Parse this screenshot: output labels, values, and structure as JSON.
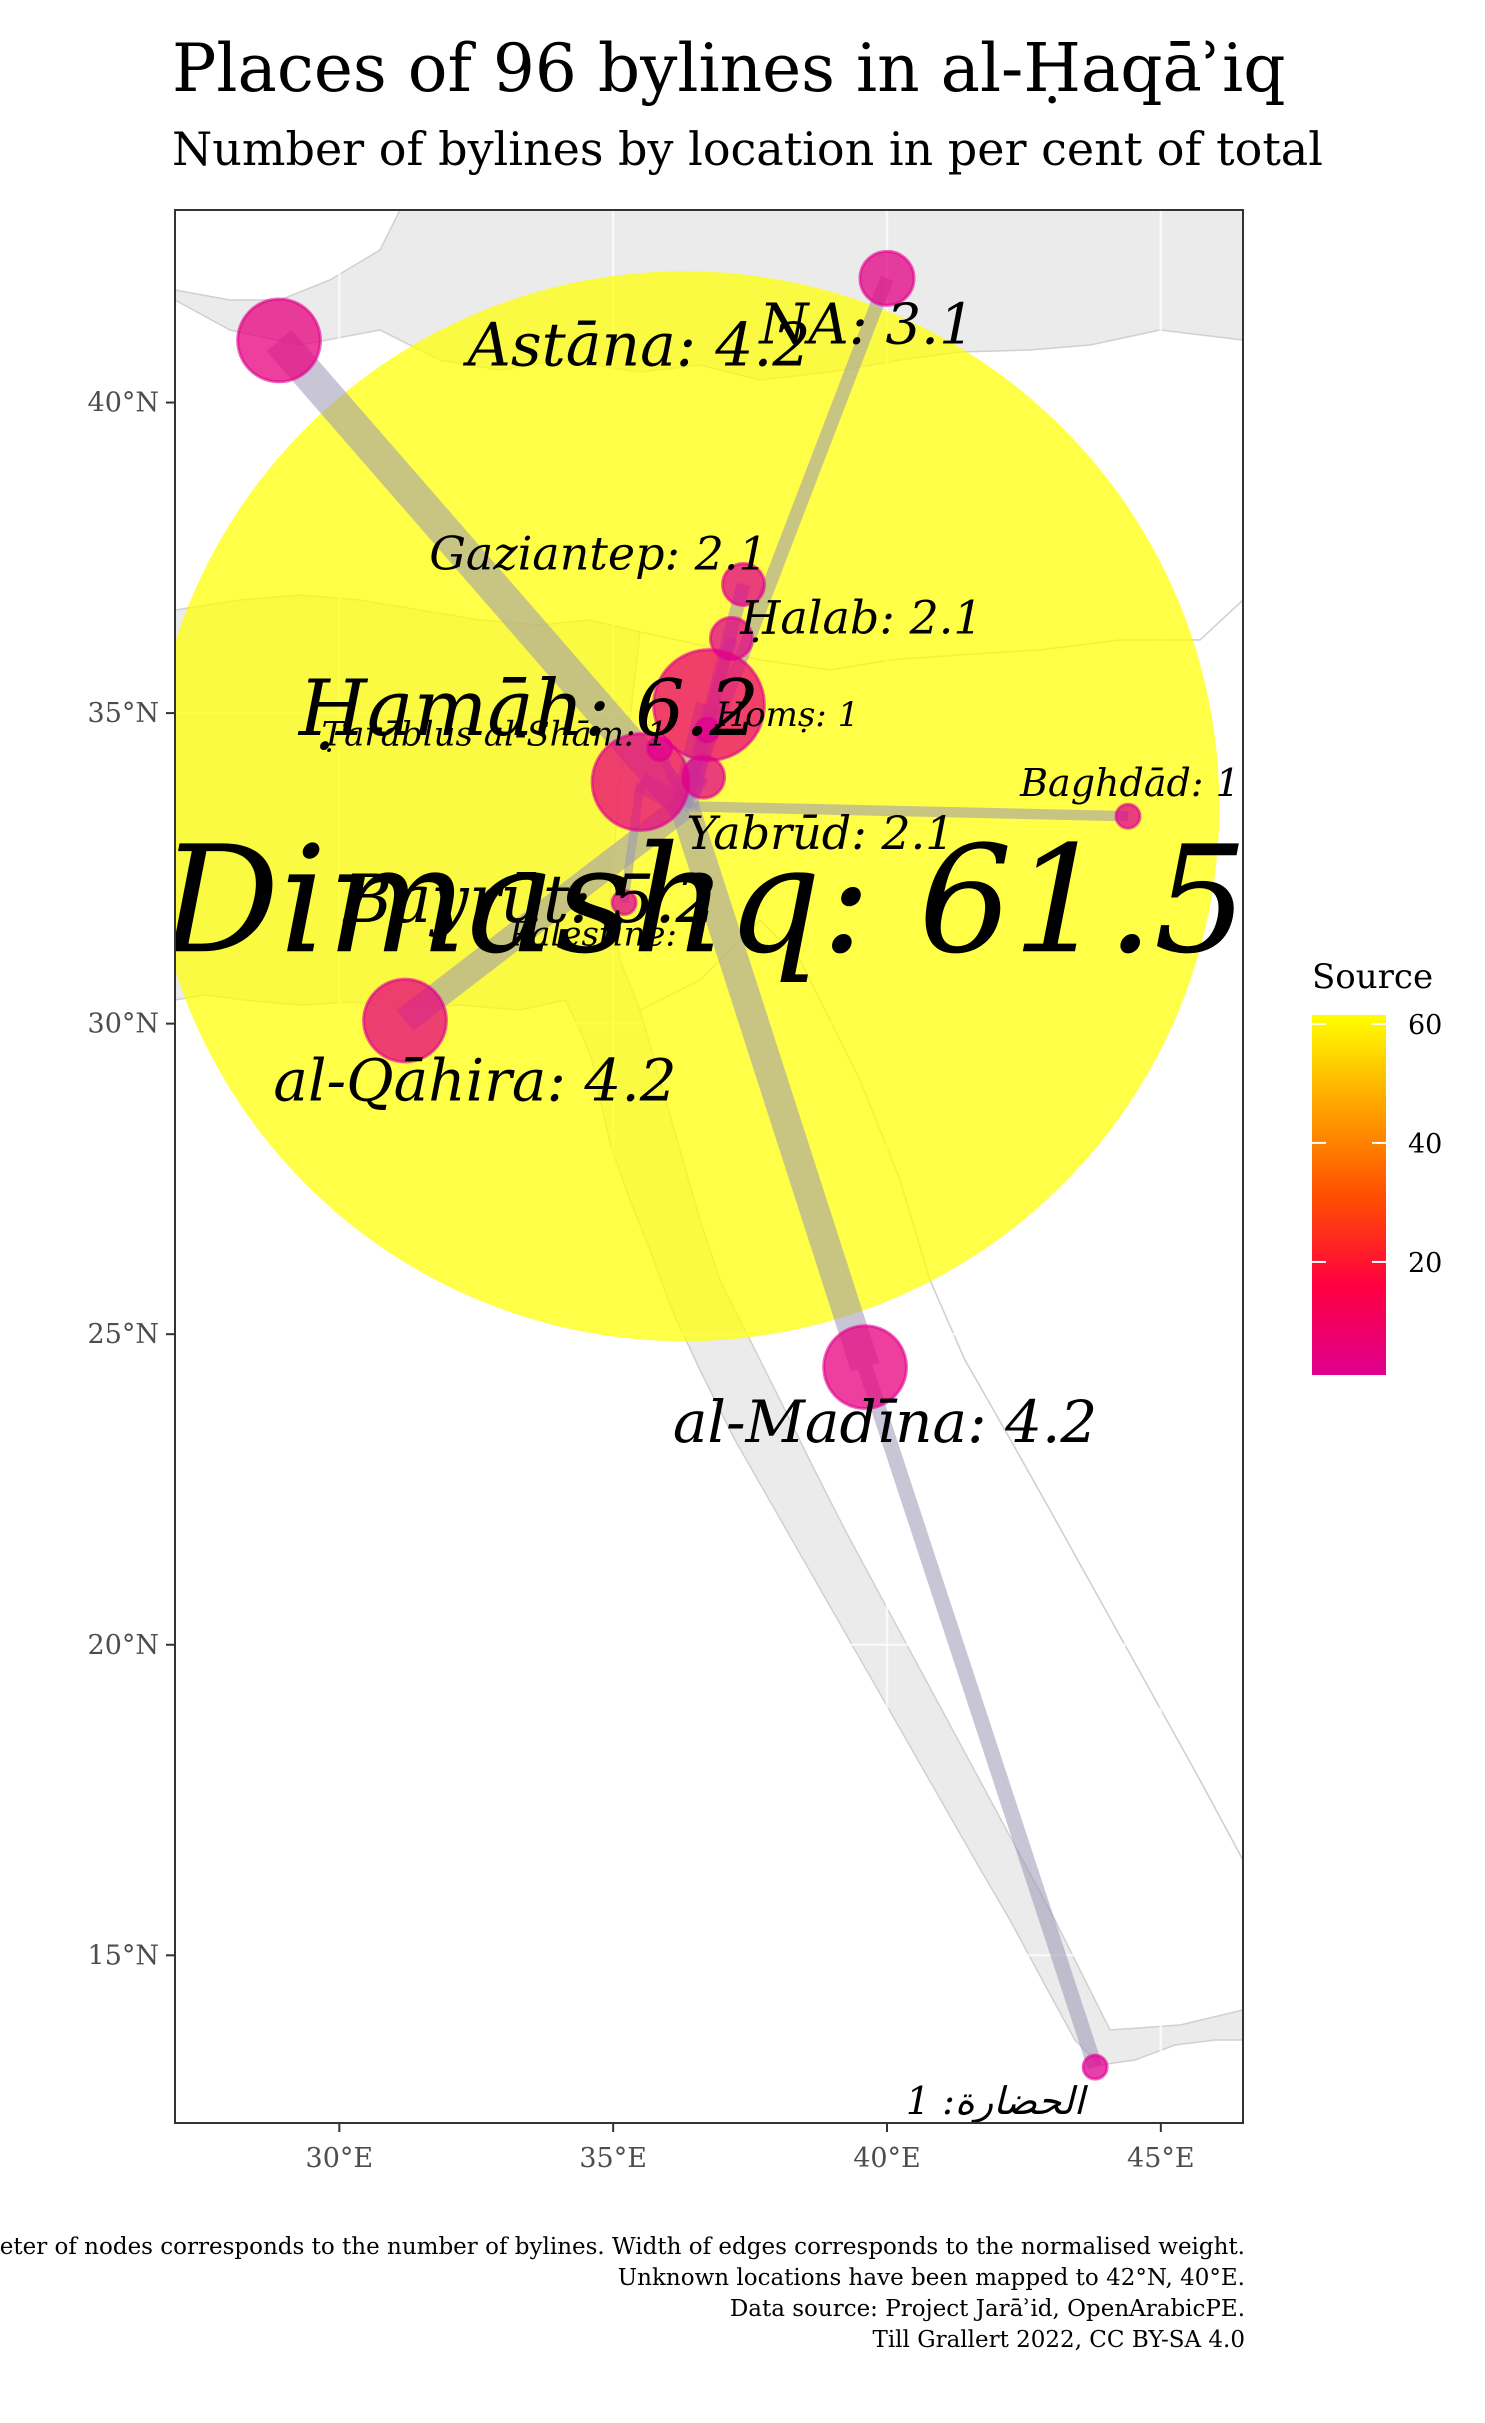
{
  "title": "Places of 96 bylines in al-Ḥaqāʾiq",
  "subtitle": "Number of bylines by location in per cent of total",
  "legend": {
    "title": "Source",
    "ticks": [
      "60",
      "40",
      "20"
    ],
    "tick_values": [
      60,
      40,
      20
    ],
    "range": [
      1,
      61.5
    ],
    "gradient_colors": [
      "#e0008f",
      "#ff0040",
      "#ff5000",
      "#ffa500",
      "#ffff00"
    ]
  },
  "axes": {
    "x_ticks": [
      {
        "value": 30,
        "label": "30°E"
      },
      {
        "value": 35,
        "label": "35°E"
      },
      {
        "value": 40,
        "label": "40°E"
      },
      {
        "value": 45,
        "label": "45°E"
      }
    ],
    "y_ticks": [
      {
        "value": 15,
        "label": "15°N"
      },
      {
        "value": 20,
        "label": "20°N"
      },
      {
        "value": 25,
        "label": "25°N"
      },
      {
        "value": 30,
        "label": "30°N"
      },
      {
        "value": 35,
        "label": "35°N"
      },
      {
        "value": 40,
        "label": "40°N"
      }
    ],
    "x_range": [
      27,
      46.5
    ],
    "y_range": [
      12.3,
      43.1
    ]
  },
  "colors": {
    "panel_background": "#ebebeb",
    "land": "#ffffff",
    "edge": "#9a96b5",
    "node_outline": "#e0008f"
  },
  "chart_data": {
    "type": "network-map",
    "nodes": [
      {
        "name": "Dimashq",
        "value": 61.5,
        "label": "Dimashq: 61.5",
        "lon": 36.3,
        "lat": 33.5
      },
      {
        "name": "Ḥamāh",
        "value": 6.2,
        "label": "Ḥamāh: 6.2",
        "lon": 36.75,
        "lat": 35.13
      },
      {
        "name": "Bayrūt",
        "value": 5.2,
        "label": "Bayrūt: 5.2",
        "lon": 35.5,
        "lat": 33.89
      },
      {
        "name": "Astāna",
        "value": 4.2,
        "label": "Astāna: 4.2",
        "lon": 28.9,
        "lat": 41.0
      },
      {
        "name": "al-Qāhira",
        "value": 4.2,
        "label": "al-Qāhira: 4.2",
        "lon": 31.2,
        "lat": 30.05
      },
      {
        "name": "al-Madīna",
        "value": 4.2,
        "label": "al-Madīna: 4.2",
        "lon": 39.6,
        "lat": 24.47
      },
      {
        "name": "NA",
        "value": 3.1,
        "label": "NA: 3.1",
        "lon": 40.0,
        "lat": 42.0
      },
      {
        "name": "Gaziantep",
        "value": 2.1,
        "label": "Gaziantep: 2.1",
        "lon": 37.38,
        "lat": 37.07
      },
      {
        "name": "Ḥalab",
        "value": 2.1,
        "label": "Ḥalab: 2.1",
        "lon": 37.16,
        "lat": 36.2
      },
      {
        "name": "Yabrūd",
        "value": 2.1,
        "label": "Yabrūd: 2.1",
        "lon": 36.65,
        "lat": 33.97
      },
      {
        "name": "Ṭarāblus al-Shām",
        "value": 1,
        "label": "Ṭarāblus al-Shām: 1",
        "lon": 35.85,
        "lat": 34.43
      },
      {
        "name": "Ḥomṣ",
        "value": 1,
        "label": "Ḥomṣ: 1",
        "lon": 36.72,
        "lat": 34.73
      },
      {
        "name": "Baghdād",
        "value": 1,
        "label": "Baghdād: 1",
        "lon": 44.4,
        "lat": 33.34
      },
      {
        "name": "Palestine",
        "value": 1,
        "label": "Palestine: 1",
        "lon": 35.2,
        "lat": 31.95
      },
      {
        "name": "الحضارة",
        "value": 1,
        "label": "الحضارة: 1",
        "lon": 43.8,
        "lat": 13.2
      }
    ],
    "edges": [
      {
        "from": "Astāna",
        "to": "Dimashq",
        "weight": 0.9
      },
      {
        "from": "al-Madīna",
        "to": "Dimashq",
        "weight": 0.8
      },
      {
        "from": "al-Qāhira",
        "to": "Dimashq",
        "weight": 0.7
      },
      {
        "from": "Ḥamāh",
        "to": "Dimashq",
        "weight": 0.7
      },
      {
        "from": "Bayrūt",
        "to": "Dimashq",
        "weight": 0.5
      },
      {
        "from": "NA",
        "to": "Dimashq",
        "weight": 0.3
      },
      {
        "from": "Gaziantep",
        "to": "Dimashq",
        "weight": 0.3
      },
      {
        "from": "Ḥalab",
        "to": "Dimashq",
        "weight": 0.25
      },
      {
        "from": "Yabrūd",
        "to": "Dimashq",
        "weight": 0.25
      },
      {
        "from": "Baghdād",
        "to": "Dimashq",
        "weight": 0.2
      },
      {
        "from": "الحضارة",
        "to": "al-Madīna",
        "weight": 0.35
      },
      {
        "from": "Palestine",
        "to": "Bayrūt",
        "weight": 0.15
      },
      {
        "from": "Ṭarāblus al-Shām",
        "to": "Dimashq",
        "weight": 0.15
      },
      {
        "from": "Ḥomṣ",
        "to": "Dimashq",
        "weight": 0.15
      }
    ]
  },
  "caption": [
    "Diameter of nodes corresponds to the number of bylines. Width of edges corresponds to the normalised weight.",
    "Unknown locations have been mapped to 42°N, 40°E.",
    "Data source: Project Jarāʾid, OpenArabicPE.",
    "Till Grallert 2022, CC BY-SA 4.0"
  ]
}
